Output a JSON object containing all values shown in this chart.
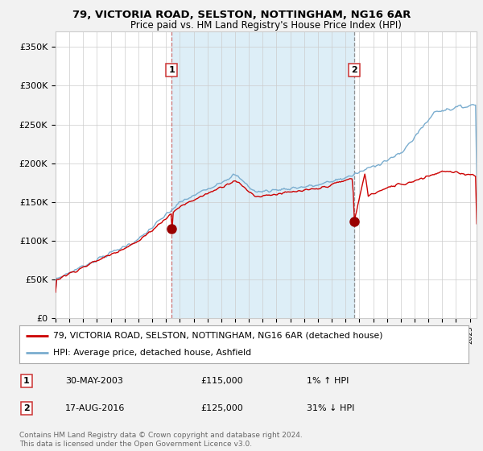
{
  "title1": "79, VICTORIA ROAD, SELSTON, NOTTINGHAM, NG16 6AR",
  "title2": "Price paid vs. HM Land Registry's House Price Index (HPI)",
  "ylim": [
    0,
    370000
  ],
  "xlim_start": 1995.0,
  "xlim_end": 2025.5,
  "legend_label1": "79, VICTORIA ROAD, SELSTON, NOTTINGHAM, NG16 6AR (detached house)",
  "legend_label2": "HPI: Average price, detached house, Ashfield",
  "marker1_x": 2003.42,
  "marker1_y": 115000,
  "marker2_x": 2016.63,
  "marker2_y": 125000,
  "footer": "Contains HM Land Registry data © Crown copyright and database right 2024.\nThis data is licensed under the Open Government Licence v3.0.",
  "color_red": "#cc0000",
  "color_blue": "#7aadcf",
  "color_blue_fill": "#ddeef7",
  "background": "#f0f4f8",
  "plot_bg": "#ffffff"
}
